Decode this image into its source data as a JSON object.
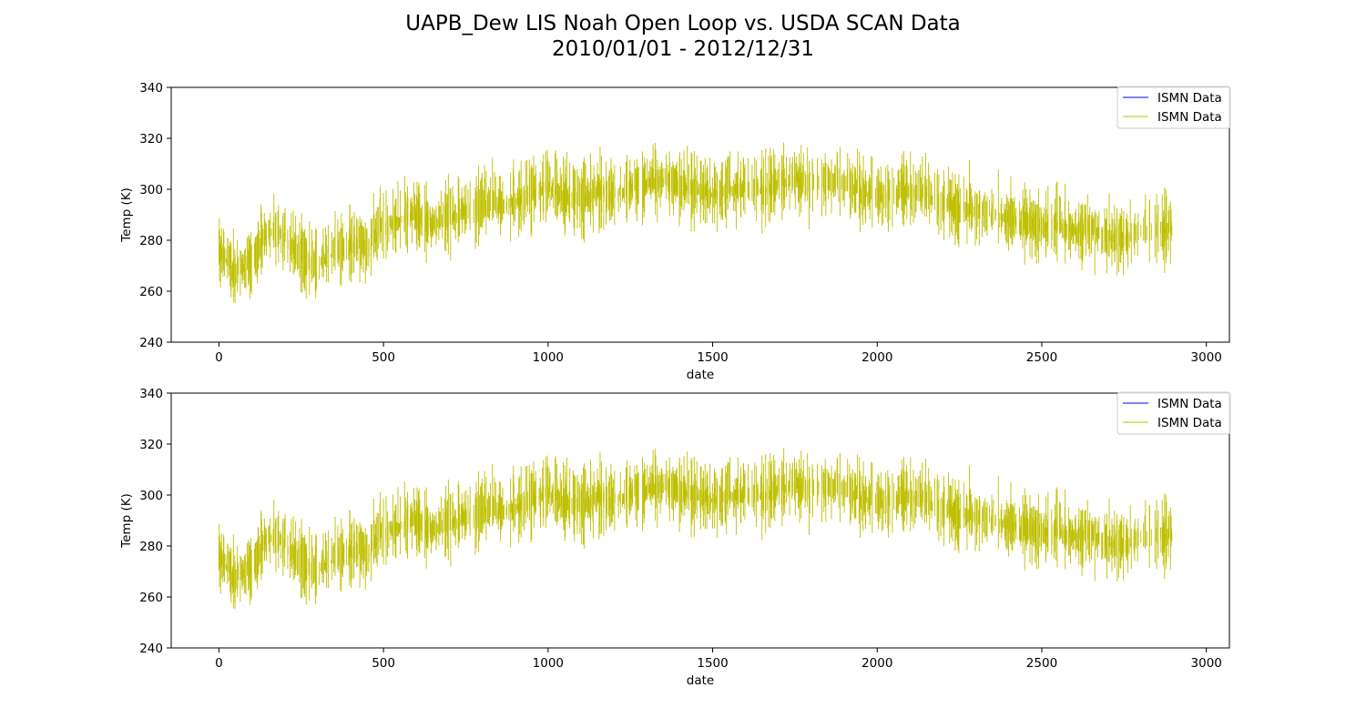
{
  "figure": {
    "title_line1": "UAPB_Dew LIS Noah Open Loop vs. USDA SCAN Data",
    "title_line2": "2010/01/01 - 2012/12/31"
  },
  "colors": {
    "series_blue": "#0000ff",
    "series_yellow": "#bfbf00"
  },
  "chart_data": [
    {
      "type": "line",
      "title": "",
      "xlabel": "date",
      "ylabel": "Temp (K)",
      "xlim": [
        -145,
        3070
      ],
      "ylim": [
        240,
        340
      ],
      "xticks": [
        0,
        500,
        1000,
        1500,
        2000,
        2500,
        3000
      ],
      "yticks": [
        240,
        260,
        280,
        300,
        320,
        340
      ],
      "legend_placement": "top-right",
      "grid": false,
      "series": [
        {
          "name": "ISMN Data",
          "color": "#0000ff",
          "x": [],
          "y": []
        },
        {
          "name": "ISMN Data",
          "color": "#bfbf00",
          "x": [
            0,
            50,
            100,
            150,
            200,
            250,
            300,
            350,
            400,
            450,
            500,
            550,
            600,
            650,
            700,
            750,
            800,
            850,
            900,
            950,
            1000,
            1050,
            1100,
            1150,
            1200,
            1250,
            1300,
            1350,
            1400,
            1450,
            1500,
            1550,
            1600,
            1650,
            1700,
            1750,
            1800,
            1850,
            1900,
            1950,
            2000,
            2050,
            2100,
            2150,
            2200,
            2250,
            2300,
            2350,
            2400,
            2450,
            2500,
            2550,
            2600,
            2650,
            2700,
            2750,
            2800,
            2850,
            2900
          ],
          "y": [
            275,
            266,
            270,
            283,
            280,
            272,
            270,
            274,
            278,
            276,
            285,
            287,
            289,
            285,
            287,
            290,
            293,
            292,
            294,
            296,
            300,
            296,
            294,
            298,
            297,
            299,
            301,
            302,
            300,
            299,
            297,
            299,
            300,
            298,
            301,
            303,
            300,
            302,
            301,
            298,
            296,
            297,
            298,
            297,
            293,
            292,
            291,
            289,
            287,
            285,
            285,
            284,
            283,
            283,
            280,
            279,
            283,
            283,
            283
          ]
        }
      ]
    },
    {
      "type": "line",
      "title": "",
      "xlabel": "date",
      "ylabel": "Temp (K)",
      "xlim": [
        -145,
        3070
      ],
      "ylim": [
        240,
        340
      ],
      "xticks": [
        0,
        500,
        1000,
        1500,
        2000,
        2500,
        3000
      ],
      "yticks": [
        240,
        260,
        280,
        300,
        320,
        340
      ],
      "legend_placement": "top-right",
      "grid": false,
      "series": [
        {
          "name": "ISMN Data",
          "color": "#0000ff",
          "x": [],
          "y": []
        },
        {
          "name": "ISMN Data",
          "color": "#bfbf00",
          "x": [
            0,
            50,
            100,
            150,
            200,
            250,
            300,
            350,
            400,
            450,
            500,
            550,
            600,
            650,
            700,
            750,
            800,
            850,
            900,
            950,
            1000,
            1050,
            1100,
            1150,
            1200,
            1250,
            1300,
            1350,
            1400,
            1450,
            1500,
            1550,
            1600,
            1650,
            1700,
            1750,
            1800,
            1850,
            1900,
            1950,
            2000,
            2050,
            2100,
            2150,
            2200,
            2250,
            2300,
            2350,
            2400,
            2450,
            2500,
            2550,
            2600,
            2650,
            2700,
            2750,
            2800,
            2850,
            2900
          ],
          "y": [
            275,
            266,
            270,
            283,
            280,
            272,
            270,
            274,
            278,
            276,
            285,
            287,
            289,
            285,
            287,
            290,
            293,
            292,
            294,
            296,
            300,
            296,
            294,
            298,
            297,
            299,
            301,
            302,
            300,
            299,
            297,
            299,
            300,
            298,
            301,
            303,
            300,
            302,
            301,
            298,
            296,
            297,
            298,
            297,
            293,
            292,
            291,
            289,
            287,
            285,
            285,
            284,
            283,
            283,
            280,
            279,
            283,
            283,
            283
          ]
        }
      ]
    }
  ]
}
